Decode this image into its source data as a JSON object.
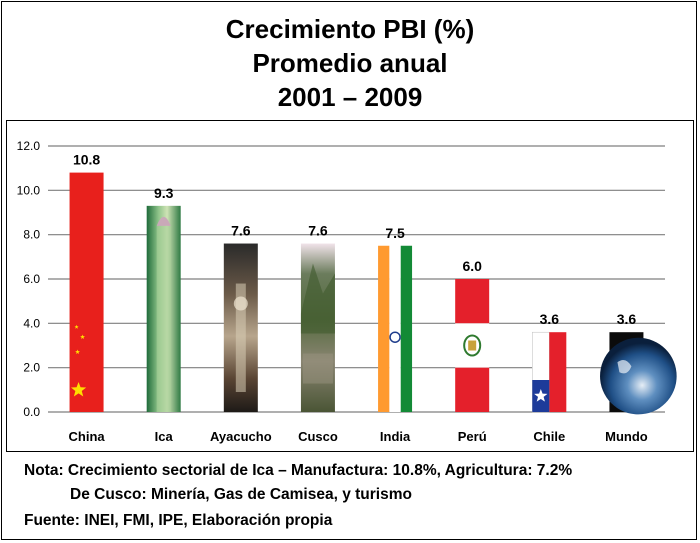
{
  "title": {
    "line1": "Crecimiento PBI (%)",
    "line2": "Promedio anual",
    "line3": "2001 – 2009"
  },
  "chart_data": {
    "type": "bar",
    "title": "Crecimiento PBI (%) Promedio anual 2001 – 2009",
    "categories": [
      "China",
      "Ica",
      "Ayacucho",
      "Cusco",
      "India",
      "Perú",
      "Chile",
      "Mundo"
    ],
    "values": [
      10.8,
      9.3,
      7.6,
      7.6,
      7.5,
      6.0,
      3.6,
      3.6
    ],
    "value_labels": [
      "10.8",
      "9.3",
      "7.6",
      "7.6",
      "7.5",
      "6.0",
      "3.6",
      "3.6"
    ],
    "ylim": [
      0,
      12
    ],
    "yticks": [
      "0.0",
      "2.0",
      "4.0",
      "6.0",
      "8.0",
      "10.0",
      "12.0"
    ],
    "grid": true,
    "bar_fills": [
      "china-flag",
      "asparagus",
      "ayacucho-image",
      "cusco-image",
      "india-flag",
      "peru-flag",
      "chile-flag",
      "earth-image"
    ]
  },
  "notes": {
    "line1": "Nota: Crecimiento sectorial de Ica – Manufactura: 10.8%, Agricultura: 7.2%",
    "line2": "De Cusco: Minería, Gas de Camisea, y turismo",
    "line3": "Fuente: INEI, FMI, IPE, Elaboración propia"
  }
}
